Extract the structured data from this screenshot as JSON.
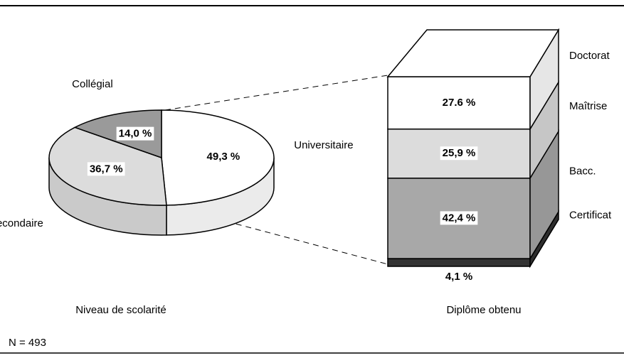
{
  "chart_data": [
    {
      "type": "pie3d",
      "label": "Niveau de scolarité",
      "categories": [
        "Universitaire",
        "Secondaire",
        "Collégial"
      ],
      "values": [
        49.3,
        36.7,
        14.0
      ],
      "value_labels": [
        "49,3 %",
        "36,7 %",
        "14,0 %"
      ],
      "colors": [
        "#ffffff",
        "#dcdcdc",
        "#9a9a9a"
      ]
    },
    {
      "type": "stacked_bar3d",
      "label": "Diplôme obtenu",
      "categories": [
        "Certificat",
        "Bacc.",
        "Maîtrise",
        "Doctorat"
      ],
      "values": [
        4.1,
        42.4,
        25.9,
        27.6
      ],
      "value_labels": [
        "4,1 %",
        "42,4 %",
        "25,9 %",
        "27.6 %"
      ],
      "colors": [
        "#333333",
        "#a8a8a8",
        "#dcdcdc",
        "#ffffff"
      ]
    }
  ],
  "note": "N = 493"
}
